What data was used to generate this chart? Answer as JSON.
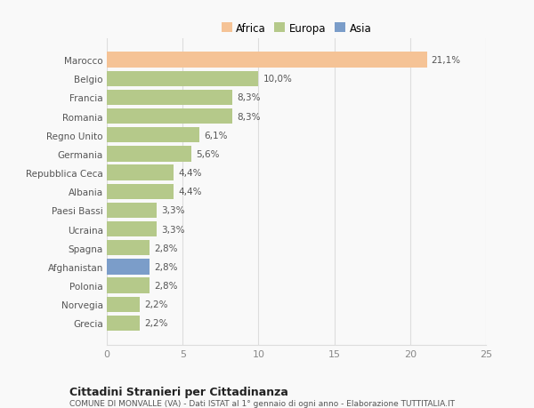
{
  "categories": [
    "Marocco",
    "Belgio",
    "Francia",
    "Romania",
    "Regno Unito",
    "Germania",
    "Repubblica Ceca",
    "Albania",
    "Paesi Bassi",
    "Ucraina",
    "Spagna",
    "Afghanistan",
    "Polonia",
    "Norvegia",
    "Grecia"
  ],
  "values": [
    21.1,
    10.0,
    8.3,
    8.3,
    6.1,
    5.6,
    4.4,
    4.4,
    3.3,
    3.3,
    2.8,
    2.8,
    2.8,
    2.2,
    2.2
  ],
  "labels": [
    "21,1%",
    "10,0%",
    "8,3%",
    "8,3%",
    "6,1%",
    "5,6%",
    "4,4%",
    "4,4%",
    "3,3%",
    "3,3%",
    "2,8%",
    "2,8%",
    "2,8%",
    "2,2%",
    "2,2%"
  ],
  "colors": [
    "#f5c396",
    "#b5c98a",
    "#b5c98a",
    "#b5c98a",
    "#b5c98a",
    "#b5c98a",
    "#b5c98a",
    "#b5c98a",
    "#b5c98a",
    "#b5c98a",
    "#b5c98a",
    "#7b9dc9",
    "#b5c98a",
    "#b5c98a",
    "#b5c98a"
  ],
  "legend": [
    {
      "label": "Africa",
      "color": "#f5c396"
    },
    {
      "label": "Europa",
      "color": "#b5c98a"
    },
    {
      "label": "Asia",
      "color": "#7b9dc9"
    }
  ],
  "xlim": [
    0,
    25
  ],
  "xticks": [
    0,
    5,
    10,
    15,
    20,
    25
  ],
  "title": "Cittadini Stranieri per Cittadinanza",
  "subtitle": "COMUNE DI MONVALLE (VA) - Dati ISTAT al 1° gennaio di ogni anno - Elaborazione TUTTITALIA.IT",
  "background_color": "#f9f9f9",
  "grid_color": "#dddddd",
  "bar_height": 0.82
}
